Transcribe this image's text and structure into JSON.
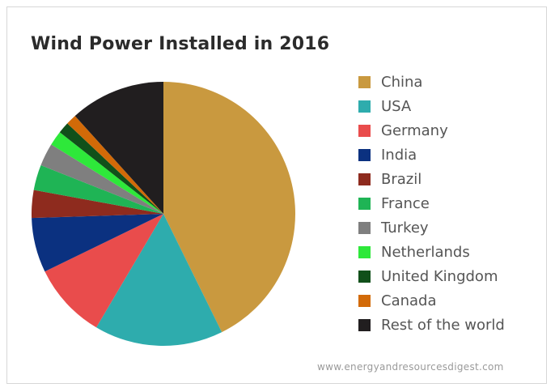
{
  "chart_data": {
    "type": "pie",
    "title": "Wind Power Installed in 2016",
    "legend_position": "right",
    "slices": [
      {
        "label": "China",
        "value": 42.7,
        "color": "#C9993F"
      },
      {
        "label": "USA",
        "value": 15.8,
        "color": "#2EACAD"
      },
      {
        "label": "Germany",
        "value": 9.3,
        "color": "#E94C4C"
      },
      {
        "label": "India",
        "value": 6.7,
        "color": "#0B3180"
      },
      {
        "label": "Brazil",
        "value": 3.4,
        "color": "#8E2B1E"
      },
      {
        "label": "France",
        "value": 3.1,
        "color": "#1FB455"
      },
      {
        "label": "Turkey",
        "value": 2.8,
        "color": "#7F7F7F"
      },
      {
        "label": "Netherlands",
        "value": 1.8,
        "color": "#2EE83A"
      },
      {
        "label": "United Kingdom",
        "value": 1.4,
        "color": "#11501A"
      },
      {
        "label": "Canada",
        "value": 1.3,
        "color": "#D26A08"
      },
      {
        "label": "Rest of the world",
        "value": 11.7,
        "color": "#211E1F"
      }
    ]
  },
  "source": "www.energyandresourcesdigest.com"
}
